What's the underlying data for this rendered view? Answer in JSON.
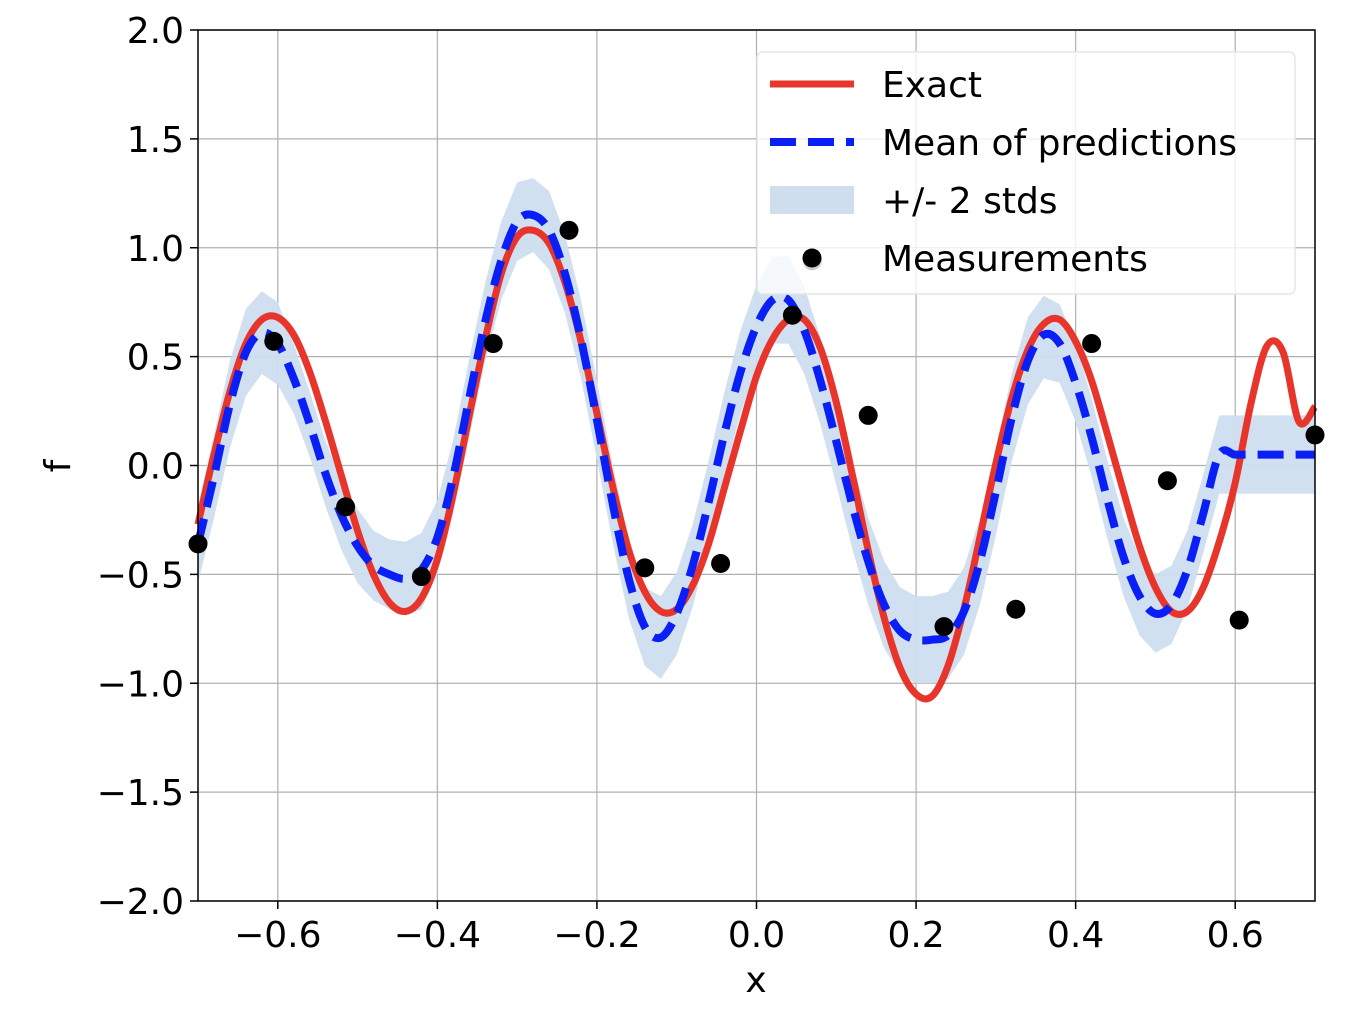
{
  "chart_data": {
    "type": "line",
    "xlabel": "x",
    "ylabel": "f",
    "xlim": [
      -0.7,
      0.7
    ],
    "ylim": [
      -2.0,
      2.0
    ],
    "grid": true,
    "legend_position": "top-right",
    "x_ticks": [
      -0.6,
      -0.4,
      -0.2,
      0.0,
      0.2,
      0.4,
      0.6
    ],
    "x_tick_labels": [
      "−0.6",
      "−0.4",
      "−0.2",
      "0.0",
      "0.2",
      "0.4",
      "0.6"
    ],
    "y_ticks": [
      2.0,
      1.5,
      1.0,
      0.5,
      0.0,
      -0.5,
      -1.0,
      -1.5,
      -2.0
    ],
    "y_tick_labels": [
      "2.0",
      "1.5",
      "1.0",
      "0.5",
      "0.0",
      "−0.5",
      "−1.0",
      "−1.5",
      "−2.0"
    ],
    "series": [
      {
        "name": "Exact",
        "kind": "line",
        "color": "#e8352b",
        "x": [
          -0.7,
          -0.68,
          -0.66,
          -0.64,
          -0.62,
          -0.6,
          -0.58,
          -0.56,
          -0.54,
          -0.52,
          -0.5,
          -0.48,
          -0.46,
          -0.44,
          -0.42,
          -0.4,
          -0.38,
          -0.36,
          -0.34,
          -0.32,
          -0.3,
          -0.28,
          -0.26,
          -0.24,
          -0.22,
          -0.2,
          -0.18,
          -0.16,
          -0.14,
          -0.12,
          -0.1,
          -0.08,
          -0.06,
          -0.04,
          -0.02,
          0.0,
          0.02,
          0.04,
          0.06,
          0.08,
          0.1,
          0.12,
          0.14,
          0.16,
          0.18,
          0.2,
          0.22,
          0.24,
          0.26,
          0.28,
          0.3,
          0.32,
          0.34,
          0.36,
          0.38,
          0.4,
          0.42,
          0.44,
          0.46,
          0.48,
          0.5,
          0.52,
          0.54,
          0.56,
          0.58,
          0.6,
          0.62,
          0.64,
          0.66,
          0.68,
          0.7
        ],
        "y": [
          -0.27,
          0.05,
          0.34,
          0.56,
          0.67,
          0.68,
          0.6,
          0.43,
          0.2,
          -0.05,
          -0.3,
          -0.5,
          -0.63,
          -0.67,
          -0.61,
          -0.43,
          -0.13,
          0.23,
          0.58,
          0.88,
          1.05,
          1.08,
          1.02,
          0.84,
          0.57,
          0.24,
          -0.1,
          -0.39,
          -0.58,
          -0.67,
          -0.66,
          -0.55,
          -0.36,
          -0.1,
          0.16,
          0.41,
          0.58,
          0.67,
          0.67,
          0.54,
          0.29,
          -0.04,
          -0.39,
          -0.7,
          -0.93,
          -1.05,
          -1.06,
          -0.92,
          -0.66,
          -0.33,
          0.01,
          0.31,
          0.53,
          0.65,
          0.67,
          0.57,
          0.39,
          0.14,
          -0.12,
          -0.37,
          -0.56,
          -0.67,
          -0.67,
          -0.56,
          -0.35,
          -0.08,
          0.29,
          0.55,
          0.52,
          0.2,
          0.27
        ]
      },
      {
        "name": "Mean of predictions",
        "kind": "dashed-line",
        "color": "#0a1ff5",
        "x": [
          -0.7,
          -0.68,
          -0.66,
          -0.64,
          -0.62,
          -0.6,
          -0.58,
          -0.56,
          -0.54,
          -0.52,
          -0.5,
          -0.48,
          -0.46,
          -0.44,
          -0.42,
          -0.4,
          -0.38,
          -0.36,
          -0.34,
          -0.32,
          -0.3,
          -0.28,
          -0.26,
          -0.24,
          -0.22,
          -0.2,
          -0.18,
          -0.16,
          -0.14,
          -0.12,
          -0.1,
          -0.08,
          -0.06,
          -0.04,
          -0.02,
          0.0,
          0.02,
          0.04,
          0.06,
          0.08,
          0.1,
          0.12,
          0.14,
          0.16,
          0.18,
          0.2,
          0.22,
          0.24,
          0.26,
          0.28,
          0.3,
          0.32,
          0.34,
          0.36,
          0.38,
          0.4,
          0.42,
          0.44,
          0.46,
          0.48,
          0.5,
          0.52,
          0.54,
          0.56,
          0.58,
          0.6,
          0.62,
          0.64,
          0.66,
          0.68,
          0.7
        ],
        "y": [
          -0.36,
          -0.05,
          0.28,
          0.52,
          0.61,
          0.56,
          0.4,
          0.19,
          -0.04,
          -0.23,
          -0.37,
          -0.46,
          -0.5,
          -0.52,
          -0.48,
          -0.33,
          -0.05,
          0.31,
          0.66,
          0.94,
          1.12,
          1.15,
          1.08,
          0.88,
          0.58,
          0.21,
          -0.18,
          -0.52,
          -0.74,
          -0.79,
          -0.68,
          -0.46,
          -0.17,
          0.15,
          0.43,
          0.64,
          0.76,
          0.76,
          0.62,
          0.39,
          0.11,
          -0.18,
          -0.44,
          -0.64,
          -0.76,
          -0.8,
          -0.8,
          -0.78,
          -0.67,
          -0.44,
          -0.12,
          0.22,
          0.48,
          0.6,
          0.56,
          0.38,
          0.13,
          -0.16,
          -0.42,
          -0.6,
          -0.68,
          -0.64,
          -0.48,
          -0.22,
          0.05,
          0.05,
          0.05,
          0.05,
          0.05,
          0.05,
          0.05
        ]
      },
      {
        "name": "+/- 2 stds",
        "kind": "band",
        "color": "#cfdeef",
        "x": [
          -0.7,
          -0.68,
          -0.66,
          -0.64,
          -0.62,
          -0.6,
          -0.58,
          -0.56,
          -0.54,
          -0.52,
          -0.5,
          -0.48,
          -0.46,
          -0.44,
          -0.42,
          -0.4,
          -0.38,
          -0.36,
          -0.34,
          -0.32,
          -0.3,
          -0.28,
          -0.26,
          -0.24,
          -0.22,
          -0.2,
          -0.18,
          -0.16,
          -0.14,
          -0.12,
          -0.1,
          -0.08,
          -0.06,
          -0.04,
          -0.02,
          0.0,
          0.02,
          0.04,
          0.06,
          0.08,
          0.1,
          0.12,
          0.14,
          0.16,
          0.18,
          0.2,
          0.22,
          0.24,
          0.26,
          0.28,
          0.3,
          0.32,
          0.34,
          0.36,
          0.38,
          0.4,
          0.42,
          0.44,
          0.46,
          0.48,
          0.5,
          0.52,
          0.54,
          0.56,
          0.58,
          0.6,
          0.62,
          0.64,
          0.66,
          0.68,
          0.7
        ],
        "y_upper": [
          -0.18,
          0.14,
          0.48,
          0.72,
          0.8,
          0.75,
          0.56,
          0.34,
          0.11,
          -0.07,
          -0.2,
          -0.3,
          -0.34,
          -0.35,
          -0.31,
          -0.16,
          0.12,
          0.49,
          0.84,
          1.12,
          1.3,
          1.32,
          1.26,
          1.06,
          0.76,
          0.39,
          0.0,
          -0.34,
          -0.56,
          -0.6,
          -0.49,
          -0.27,
          0.02,
          0.34,
          0.62,
          0.83,
          0.96,
          0.96,
          0.82,
          0.59,
          0.31,
          0.02,
          -0.24,
          -0.44,
          -0.56,
          -0.6,
          -0.6,
          -0.58,
          -0.47,
          -0.24,
          0.08,
          0.42,
          0.68,
          0.78,
          0.74,
          0.56,
          0.31,
          0.02,
          -0.24,
          -0.42,
          -0.5,
          -0.46,
          -0.3,
          -0.04,
          0.23,
          0.23,
          0.23,
          0.23,
          0.23,
          0.23,
          0.23
        ],
        "y_lower": [
          -0.54,
          -0.24,
          0.08,
          0.32,
          0.42,
          0.37,
          0.24,
          0.04,
          -0.19,
          -0.39,
          -0.54,
          -0.62,
          -0.66,
          -0.69,
          -0.66,
          -0.5,
          -0.22,
          0.13,
          0.48,
          0.76,
          0.94,
          0.98,
          0.9,
          0.7,
          0.4,
          0.03,
          -0.36,
          -0.7,
          -0.92,
          -0.98,
          -0.87,
          -0.65,
          -0.36,
          -0.04,
          0.24,
          0.45,
          0.56,
          0.56,
          0.42,
          0.19,
          -0.09,
          -0.38,
          -0.64,
          -0.84,
          -0.96,
          -1.0,
          -1.0,
          -0.98,
          -0.87,
          -0.64,
          -0.32,
          0.02,
          0.28,
          0.4,
          0.38,
          0.2,
          -0.05,
          -0.34,
          -0.6,
          -0.78,
          -0.86,
          -0.82,
          -0.66,
          -0.4,
          -0.13,
          -0.13,
          -0.13,
          -0.13,
          -0.13,
          -0.13,
          -0.13
        ]
      },
      {
        "name": "Measurements",
        "kind": "scatter",
        "color": "#000000",
        "x": [
          -0.7,
          -0.605,
          -0.515,
          -0.42,
          -0.33,
          -0.235,
          -0.14,
          -0.045,
          0.045,
          0.07,
          0.14,
          0.235,
          0.325,
          0.42,
          0.515,
          0.605,
          0.7
        ],
        "y": [
          -0.36,
          0.57,
          -0.19,
          -0.51,
          0.56,
          1.08,
          -0.47,
          -0.45,
          0.69,
          0.94,
          0.23,
          -0.74,
          -0.66,
          0.56,
          -0.07,
          -0.71,
          0.14
        ]
      }
    ]
  }
}
